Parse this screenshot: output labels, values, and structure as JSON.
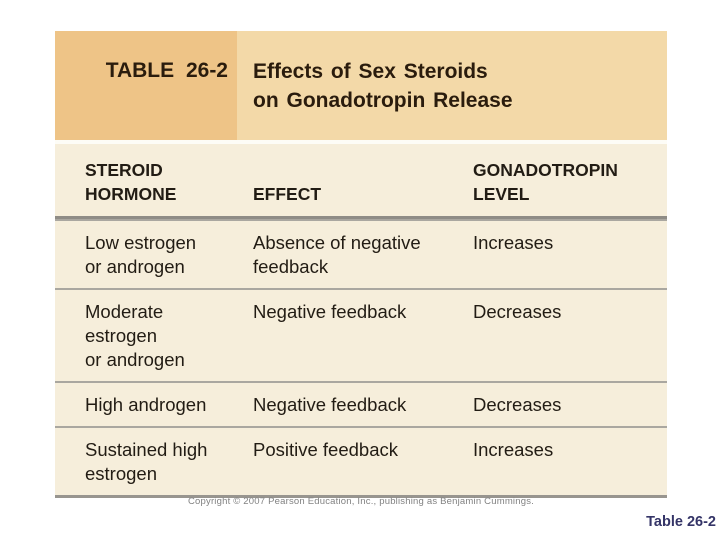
{
  "table": {
    "number_label": "TABLE 26-2",
    "title": "Effects of Sex Steroids\non Gonadotropin Release",
    "columns": {
      "hormone": "STEROID\nHORMONE",
      "effect": "EFFECT",
      "level": "GONADOTROPIN\nLEVEL"
    },
    "rows": [
      {
        "hormone": "Low estrogen\nor androgen",
        "effect": "Absence of negative\nfeedback",
        "level": "Increases"
      },
      {
        "hormone": "Moderate\nestrogen\nor androgen",
        "effect": "Negative feedback",
        "level": "Decreases"
      },
      {
        "hormone": "High androgen",
        "effect": "Negative feedback",
        "level": "Decreases"
      },
      {
        "hormone": "Sustained high\nestrogen",
        "effect": "Positive feedback",
        "level": "Increases"
      }
    ]
  },
  "footer": {
    "copyright": "Copyright © 2007 Pearson Education, Inc., publishing as Benjamin Cummings.",
    "slide_label": "Table 26-2"
  },
  "colors": {
    "band_left": "#eec487",
    "band_right": "#f3d9a8",
    "body_background": "#f6eedb",
    "separator_gray": "#aaa7a0",
    "text": "#221c14",
    "slide_label_navy": "#343467",
    "copyright_gray": "#828282"
  }
}
